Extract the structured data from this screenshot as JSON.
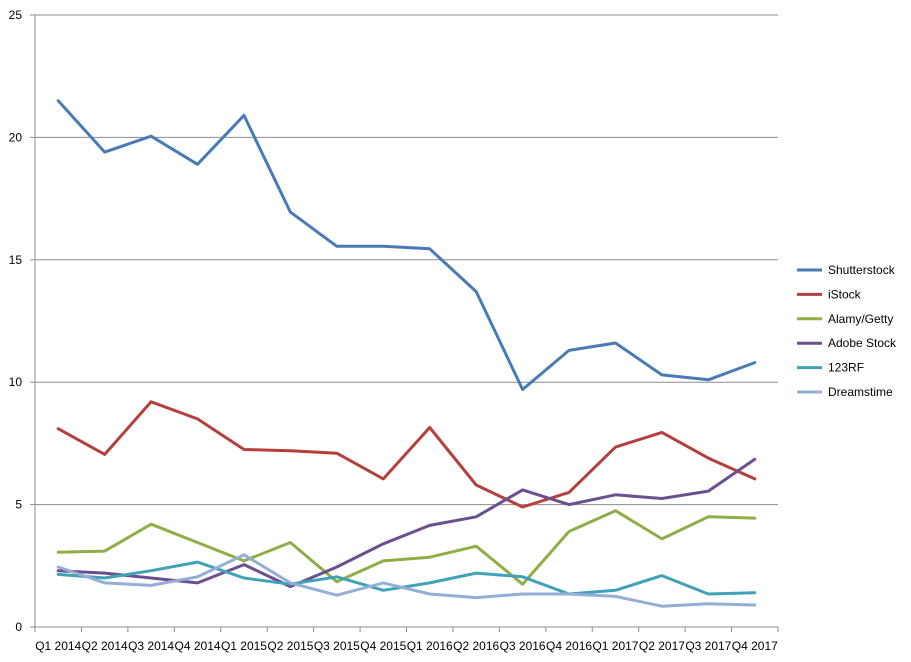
{
  "chart_data": {
    "type": "line",
    "title": "",
    "xlabel": "",
    "ylabel": "",
    "ylim": [
      0,
      25
    ],
    "yticks": [
      "0",
      "5",
      "10",
      "15",
      "20",
      "25"
    ],
    "grid": "horizontal",
    "legend_position": "right",
    "categories": [
      "Q1 2014",
      "Q2 2014",
      "Q3 2014",
      "Q4 2014",
      "Q1 2015",
      "Q2 2015",
      "Q3 2015",
      "Q4 2015",
      "Q1 2016",
      "Q2 2016",
      "Q3 2016",
      "Q4 2016",
      "Q1 2017",
      "Q2 2017",
      "Q3 2017",
      "Q4 2017"
    ],
    "series": [
      {
        "name": "Shutterstock",
        "color": "#4a7ab5",
        "values": [
          21.5,
          19.4,
          20.05,
          18.9,
          20.9,
          16.95,
          15.55,
          15.55,
          15.45,
          13.7,
          9.7,
          11.3,
          11.6,
          10.3,
          10.1,
          10.8
        ]
      },
      {
        "name": "iStock",
        "color": "#b4403e",
        "values": [
          8.1,
          7.05,
          9.2,
          8.5,
          7.25,
          7.2,
          7.1,
          6.05,
          8.15,
          5.8,
          4.9,
          5.5,
          7.35,
          7.95,
          6.9,
          6.05
        ]
      },
      {
        "name": "Alamy/Getty",
        "color": "#8fae45",
        "values": [
          3.05,
          3.1,
          4.2,
          3.45,
          2.7,
          3.45,
          1.85,
          2.7,
          2.85,
          3.3,
          1.75,
          3.9,
          4.75,
          3.6,
          4.5,
          4.45
        ]
      },
      {
        "name": "Adobe Stock",
        "color": "#6b4f8e",
        "values": [
          2.3,
          2.2,
          2.0,
          1.8,
          2.55,
          1.65,
          2.45,
          3.4,
          4.15,
          4.5,
          5.6,
          5.0,
          5.4,
          5.25,
          5.55,
          6.85
        ]
      },
      {
        "name": "123RF",
        "color": "#3fa2b8",
        "values": [
          2.15,
          2.0,
          2.3,
          2.65,
          2.0,
          1.75,
          2.05,
          1.5,
          1.8,
          2.2,
          2.05,
          1.35,
          1.5,
          2.1,
          1.35,
          1.4
        ]
      },
      {
        "name": "Dreamstime",
        "color": "#94aed6",
        "values": [
          2.45,
          1.8,
          1.7,
          2.05,
          2.95,
          1.8,
          1.3,
          1.8,
          1.35,
          1.2,
          1.35,
          1.35,
          1.25,
          0.85,
          0.95,
          0.9
        ]
      }
    ]
  }
}
